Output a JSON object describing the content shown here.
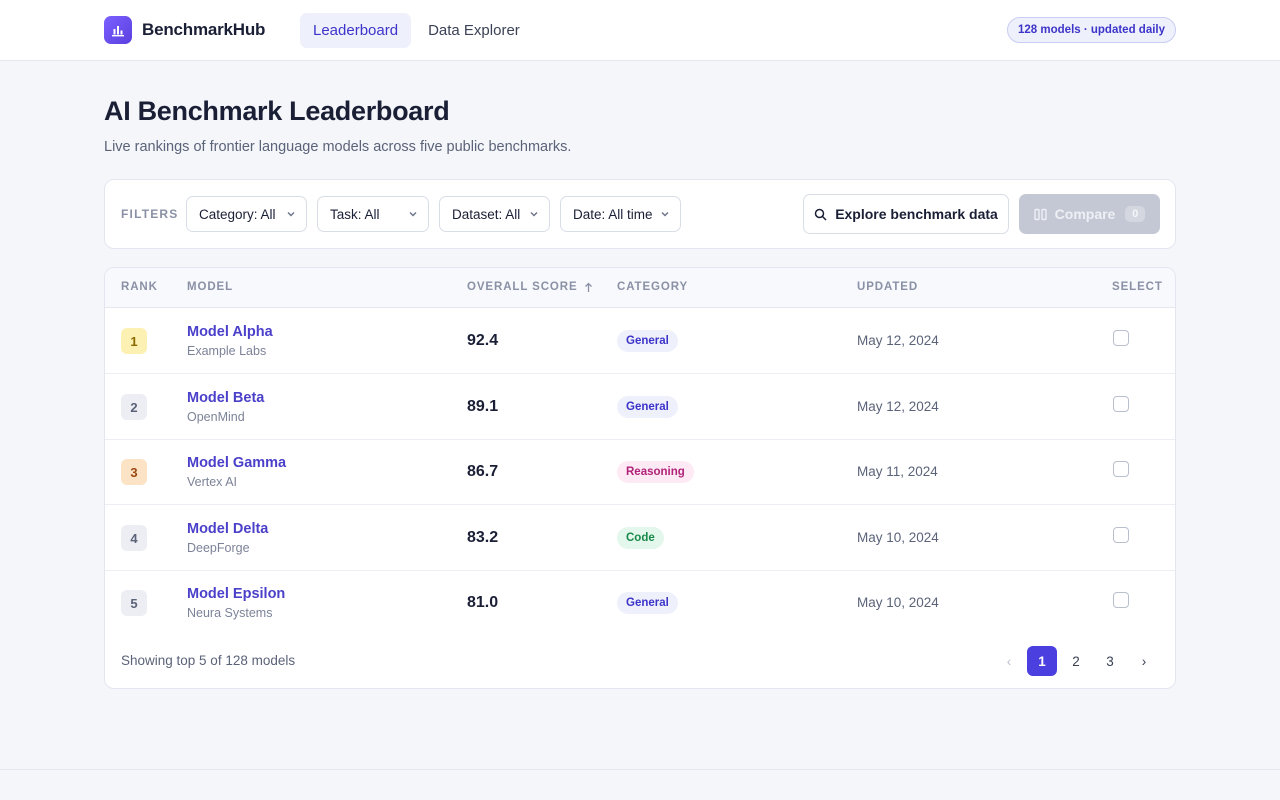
{
  "header": {
    "brand_name": "BenchmarkHub",
    "tabs": [
      {
        "label": "Leaderboard",
        "active": true
      },
      {
        "label": "Data Explorer",
        "active": false
      }
    ],
    "status_pill": "128 models · updated daily"
  },
  "page": {
    "title": "AI Benchmark Leaderboard",
    "subtitle": "Live rankings of frontier language models across five public benchmarks."
  },
  "filters": {
    "label": "FILTERS",
    "category": "Category: All",
    "task": "Task: All",
    "dataset": "Dataset: All",
    "date": "Date: All time",
    "explore_label": "Explore benchmark data",
    "compare_label": "Compare",
    "compare_count": "0"
  },
  "table": {
    "headers": {
      "rank": "RANK",
      "model": "MODEL",
      "score": "OVERALL SCORE",
      "category": "CATEGORY",
      "updated": "UPDATED",
      "select": "SELECT"
    },
    "rows": [
      {
        "rank": "1",
        "name": "Model Alpha",
        "org": "Example Labs",
        "score": "92.4",
        "category": "General",
        "updated": "May 12, 2024"
      },
      {
        "rank": "2",
        "name": "Model Beta",
        "org": "OpenMind",
        "score": "89.1",
        "category": "General",
        "updated": "May 12, 2024"
      },
      {
        "rank": "3",
        "name": "Model Gamma",
        "org": "Vertex AI",
        "score": "86.7",
        "category": "Reasoning",
        "updated": "May 11, 2024"
      },
      {
        "rank": "4",
        "name": "Model Delta",
        "org": "DeepForge",
        "score": "83.2",
        "category": "Code",
        "updated": "May 10, 2024"
      },
      {
        "rank": "5",
        "name": "Model Epsilon",
        "org": "Neura Systems",
        "score": "81.0",
        "category": "General",
        "updated": "May 10, 2024"
      }
    ],
    "footer_text": "Showing top 5 of 128 models",
    "pagination": {
      "prev": "‹",
      "pages": [
        "1",
        "2",
        "3"
      ],
      "next": "›",
      "current": "1"
    }
  },
  "colors": {
    "accent": "#4b3fe0",
    "rank_gold": "#fdf0b3",
    "rank_bronze": "#fde3c6",
    "badge_general": "#eef0fb",
    "badge_reasoning": "#fdeaf4",
    "badge_code": "#e4f7ec"
  }
}
